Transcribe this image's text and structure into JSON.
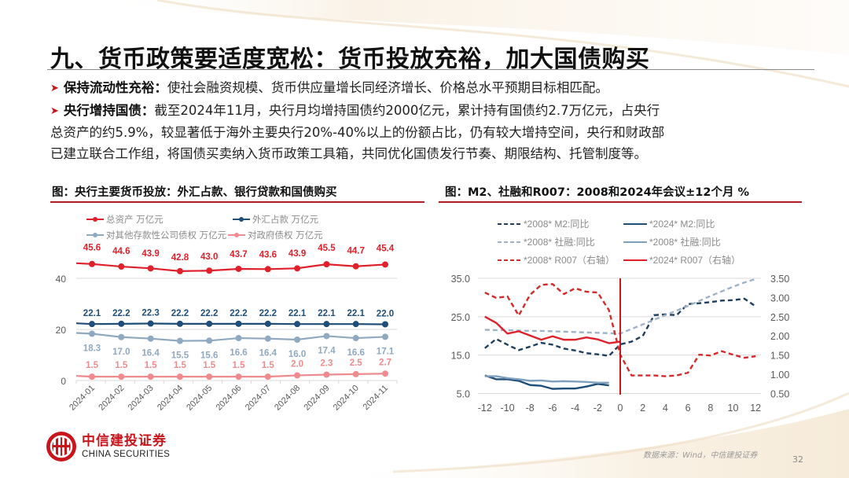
{
  "slide": {
    "title": "九、货币政策要适度宽松：货币投放充裕，加大国债购买",
    "page_number": "32",
    "source": "数据来源：Wind，中信建投证券"
  },
  "bullets": [
    {
      "key": "保持流动性充裕：",
      "lines": [
        "使社会融资规模、货币供应量增长同经济增长、价格总水平预期目标相匹配。"
      ]
    },
    {
      "key": "央行增持国债：",
      "lines": [
        "截至2024年11月，央行月均增持国债约2000亿元，累计持有国债约2.7万亿元，占央行",
        "总资产的约5.9%，较显著低于海外主要央行20%-40%以上的份额占比，仍有较大增持空间，央行和财政部",
        "已建立联合工作组，将国债买卖纳入货币政策工具箱，共同优化国债发行节奏、期限结构、托管制度等。"
      ]
    }
  ],
  "logo": {
    "cn": "中信建投证券",
    "en": "CHINA SECURITIES",
    "icon": "china-securities-logo-icon"
  },
  "colors": {
    "brand_red": "#c8161d",
    "total_assets": "#e0202a",
    "fx": "#1f4e79",
    "other_depository": "#8fa9c0",
    "government": "#ef8a8e",
    "m2_2008": "#1f3f5f",
    "m2_2024": "#1f4e79",
    "tsf_2008": "#9fb3c8",
    "tsf_2024": "#7f9fbf",
    "r007_2008": "#d42a2a",
    "r007_2024": "#e0202a",
    "grid": "#d9d9d9",
    "axis_text": "#595959"
  },
  "chart_data": [
    {
      "type": "line",
      "title": "图：央行主要货币投放：外汇占款、银行贷款和国债购买",
      "xlabel": "",
      "ylabel": "",
      "ylim": [
        0,
        40
      ],
      "yticks": [
        0,
        20,
        40
      ],
      "grid": true,
      "legend_position": "top",
      "categories": [
        "2024-01",
        "2024-02",
        "2024-03",
        "2024-04",
        "2024-05",
        "2024-06",
        "2024-07",
        "2024-08",
        "2024-09",
        "2024-10",
        "2024-11"
      ],
      "series": [
        {
          "name": "总资产 万亿元",
          "color": "#e0202a",
          "values": [
            45.6,
            44.6,
            43.9,
            42.8,
            43.0,
            43.7,
            43.6,
            43.9,
            45.5,
            44.7,
            45.4
          ],
          "labels": [
            "45.6",
            "44.6",
            "43.9",
            "42.8",
            "43.0",
            "43.7",
            "43.6",
            "43.9",
            "45.5",
            "44.7",
            "45.4"
          ],
          "label_pos": "above"
        },
        {
          "name": "外汇占款 万亿元",
          "color": "#1f4e79",
          "values": [
            22.1,
            22.2,
            22.3,
            22.2,
            22.2,
            22.2,
            22.2,
            22.1,
            22.1,
            22.1,
            22.0
          ],
          "labels": [
            "22.1",
            "22.2",
            "22.3",
            "22.2",
            "22.2",
            "22.2",
            "22.2",
            "22.1",
            "22.1",
            "22.1",
            "22.0"
          ],
          "label_pos": "above"
        },
        {
          "name": "对其他存款性公司债权 万亿元",
          "color": "#8fa9c0",
          "values": [
            18.3,
            17.0,
            16.4,
            15.5,
            15.6,
            16.6,
            16.4,
            16.0,
            17.4,
            16.6,
            17.1
          ],
          "labels": [
            "18.3",
            "17.0",
            "16.4",
            "15.5",
            "15.6",
            "16.6",
            "16.4",
            "16.0",
            "17.4",
            "16.6",
            "17.1"
          ],
          "label_pos": "below"
        },
        {
          "name": "对政府债权 万亿元",
          "color": "#ef8a8e",
          "values": [
            1.5,
            1.5,
            1.5,
            1.5,
            1.5,
            1.5,
            1.5,
            2.0,
            2.3,
            2.5,
            2.7
          ],
          "labels": [
            "1.5",
            "1.5",
            "1.5",
            "1.5",
            "1.5",
            "1.5",
            "1.5",
            "2.0",
            "2.3",
            "2.5",
            "2.7"
          ],
          "label_pos": "above"
        }
      ]
    },
    {
      "type": "line",
      "title": "图：M2、社融和R007：2008和2024年会议±12个月 %",
      "xlabel": "",
      "ylabel": "",
      "x": [
        -12,
        -11,
        -10,
        -9,
        -8,
        -7,
        -6,
        -5,
        -4,
        -3,
        -2,
        -1,
        0,
        1,
        2,
        3,
        4,
        5,
        6,
        7,
        8,
        9,
        10,
        11,
        12
      ],
      "xticks": [
        -12,
        -10,
        -8,
        -6,
        -4,
        -2,
        0,
        2,
        4,
        6,
        8,
        10,
        12
      ],
      "ylim": [
        5.0,
        35.0
      ],
      "yticks": [
        "5.0",
        "15.0",
        "25.0",
        "35.0"
      ],
      "y2lim": [
        0.5,
        3.5
      ],
      "y2ticks": [
        "0.50",
        "1.00",
        "1.50",
        "2.00",
        "2.50",
        "3.00",
        "3.50"
      ],
      "grid": true,
      "legend_position": "top",
      "vline_x": 0,
      "series": [
        {
          "name": "*2008* M2:同比",
          "color": "#1f3f5f",
          "dash": true,
          "axis": "left",
          "values": [
            16.8,
            19.2,
            17.7,
            16.3,
            17.2,
            18.2,
            17.7,
            16.7,
            16.2,
            15.5,
            15.2,
            14.8,
            17.8,
            18.5,
            20.0,
            25.4,
            25.6,
            25.4,
            28.3,
            28.5,
            28.8,
            29.2,
            29.3,
            29.7,
            27.7
          ]
        },
        {
          "name": "*2024* M2:同比",
          "color": "#1f4e79",
          "dash": false,
          "axis": "left",
          "values": [
            9.7,
            8.7,
            8.7,
            8.3,
            7.2,
            7.0,
            6.2,
            6.3,
            6.3,
            6.8,
            7.5,
            7.1,
            null,
            null,
            null,
            null,
            null,
            null,
            null,
            null,
            null,
            null,
            null,
            null,
            null
          ]
        },
        {
          "name": "*2008* 社融:同比",
          "color": "#9fb3c8",
          "dash": true,
          "axis": "left",
          "values": [
            21.6,
            21.5,
            21.5,
            21.4,
            21.3,
            21.3,
            21.2,
            21.1,
            21.0,
            20.9,
            20.8,
            20.7,
            20.6,
            21.8,
            23.0,
            24.2,
            25.4,
            26.6,
            27.8,
            29.1,
            30.4,
            31.6,
            32.8,
            33.9,
            34.8
          ]
        },
        {
          "name": "*2008* 社融:同比",
          "color": "#7f9fbf",
          "dash": false,
          "axis": "left",
          "values": [
            9.5,
            9.5,
            9.0,
            8.7,
            8.3,
            8.4,
            8.1,
            8.2,
            8.1,
            8.0,
            7.8,
            7.8,
            null,
            null,
            null,
            null,
            null,
            null,
            null,
            null,
            null,
            null,
            null,
            null,
            null
          ]
        },
        {
          "name": "*2008* R007（右轴）",
          "color": "#d42a2a",
          "dash": true,
          "axis": "right",
          "values": [
            3.13,
            2.99,
            3.03,
            2.53,
            3.07,
            3.33,
            3.35,
            3.09,
            3.24,
            3.15,
            3.13,
            2.67,
            1.51,
            0.97,
            0.97,
            0.97,
            0.95,
            0.97,
            1.04,
            1.51,
            1.49,
            1.6,
            1.51,
            1.43,
            1.47
          ]
        },
        {
          "name": "*2024* R007（右轴）",
          "color": "#e0202a",
          "dash": false,
          "axis": "right",
          "values": [
            2.5,
            2.34,
            2.06,
            2.12,
            2.01,
            1.9,
            1.99,
            1.9,
            1.9,
            1.96,
            1.91,
            1.81,
            1.85,
            null,
            null,
            null,
            null,
            null,
            null,
            null,
            null,
            null,
            null,
            null,
            null
          ]
        }
      ]
    }
  ]
}
